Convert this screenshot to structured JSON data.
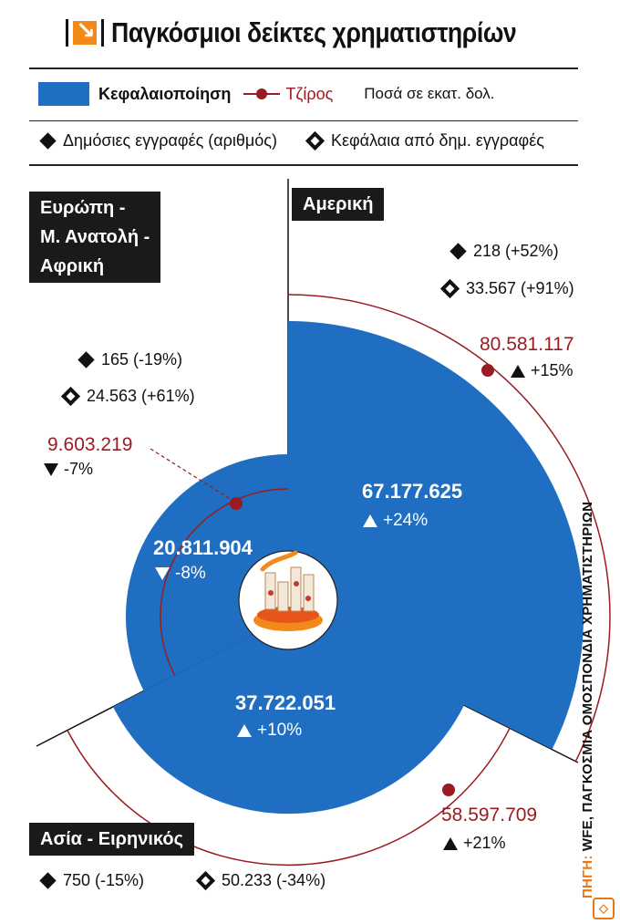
{
  "title": "Παγκόσμιοι δείκτες χρηματιστηρίων",
  "legend": {
    "capitalization": "Κεφαλαιοποίηση",
    "turnover": "Τζίρος",
    "unit": "Ποσά σε εκατ. δολ.",
    "listings": "Δημόσιες εγγραφές (αριθμός)",
    "funds": "Κεφάλαια από δημ. εγγραφές"
  },
  "colors": {
    "capitalization": "#1f6ec1",
    "turnover": "#9a1c22",
    "accent": "#f28a1a"
  },
  "regions": {
    "america": {
      "label": "Αμερική",
      "listings": "218 (+52%)",
      "funds": "33.567 (+91%)",
      "turnover": "80.581.117",
      "turnover_change": "+15%",
      "cap": "67.177.625",
      "cap_change": "+24%"
    },
    "europe": {
      "label_lines": [
        "Ευρώπη -",
        "Μ. Ανατολή -",
        "Αφρική"
      ],
      "listings": "165 (-19%)",
      "funds": "24.563 (+61%)",
      "turnover": "9.603.219",
      "turnover_change": "-7%",
      "cap": "20.811.904",
      "cap_change": "-8%"
    },
    "asia": {
      "label": "Ασία - Ειρηνικός",
      "listings": "750 (-15%)",
      "funds": "50.233 (-34%)",
      "turnover": "58.597.709",
      "turnover_change": "+21%",
      "cap": "37.722.051",
      "cap_change": "+10%"
    }
  },
  "source": {
    "label": "ΠΗΓΗ:",
    "text": "WFE, ΠΑΓΚΟΣΜΙΑ ΟΜΟΣΠΟΝΔΙΑ ΧΡΗΜΑΤΙΣΤΗΡΙΩΝ"
  },
  "chart_data": {
    "type": "polar-area",
    "categories": [
      "Αμερική",
      "Ευρώπη - Μ. Ανατολή - Αφρική",
      "Ασία - Ειρηνικός"
    ],
    "series": [
      {
        "name": "Κεφαλαιοποίηση",
        "values": [
          67177625,
          20811904,
          37722051
        ],
        "changes": [
          "+24%",
          "-8%",
          "+10%"
        ]
      },
      {
        "name": "Τζίρος",
        "values": [
          80581117,
          9603219,
          58597709
        ],
        "changes": [
          "+15%",
          "-7%",
          "+21%"
        ]
      },
      {
        "name": "Δημόσιες εγγραφές (αριθμός)",
        "values": [
          218,
          165,
          750
        ],
        "changes": [
          "+52%",
          "-19%",
          "-15%"
        ]
      },
      {
        "name": "Κεφάλαια από δημ. εγγραφές",
        "values": [
          33567,
          24563,
          50233
        ],
        "changes": [
          "+91%",
          "+61%",
          "-34%"
        ]
      }
    ],
    "unit": "Ποσά σε εκατ. δολ."
  }
}
